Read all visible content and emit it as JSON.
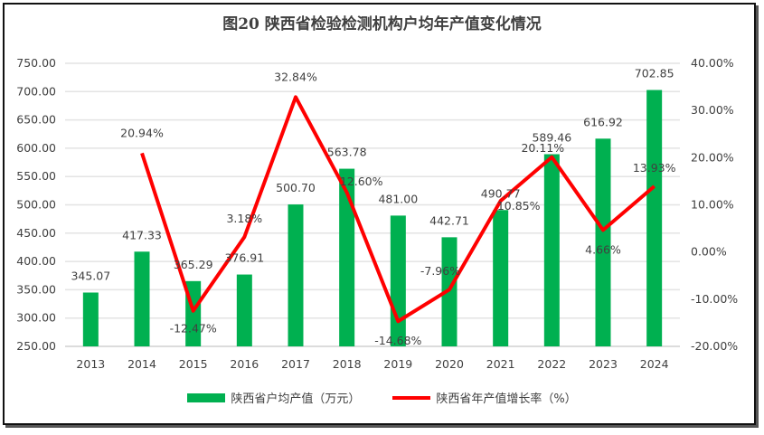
{
  "chart_data": {
    "type": "bar+line",
    "title": "图20  陕西省检验检测机构户均年产值变化情况",
    "categories": [
      "2013",
      "2014",
      "2015",
      "2016",
      "2017",
      "2018",
      "2019",
      "2020",
      "2021",
      "2022",
      "2023",
      "2024"
    ],
    "series": [
      {
        "name": "陕西省户均产值（万元）",
        "type": "bar",
        "axis": "left",
        "color": "#00b050",
        "values": [
          345.07,
          417.33,
          365.29,
          376.91,
          500.7,
          563.78,
          481.0,
          442.71,
          490.77,
          589.46,
          616.92,
          702.85
        ],
        "labels": [
          "345.07",
          "417.33",
          "365.29",
          "376.91",
          "500.70",
          "563.78",
          "481.00",
          "442.71",
          "490.77",
          "589.46",
          "616.92",
          "702.85"
        ]
      },
      {
        "name": "陕西省年产值增长率（%）",
        "type": "line",
        "axis": "right",
        "color": "#ff0000",
        "values": [
          null,
          20.94,
          -12.47,
          3.18,
          32.84,
          12.6,
          -14.68,
          -7.96,
          10.85,
          20.11,
          4.66,
          13.93
        ],
        "labels": [
          "",
          "20.94%",
          "-12.47%",
          "3.18%",
          "32.84%",
          "12.60%",
          "-14.68%",
          "-7.96%",
          "10.85%",
          "20.11%",
          "4.66%",
          "13.93%"
        ]
      }
    ],
    "y_left": {
      "range": [
        250,
        750
      ],
      "ticks": [
        "250.00",
        "300.00",
        "350.00",
        "400.00",
        "450.00",
        "500.00",
        "550.00",
        "600.00",
        "650.00",
        "700.00",
        "750.00"
      ]
    },
    "y_right": {
      "range": [
        -20,
        40
      ],
      "ticks": [
        "-20.00%",
        "-10.00%",
        "0.00%",
        "10.00%",
        "20.00%",
        "30.00%",
        "40.00%"
      ]
    },
    "grid": true,
    "legend": "bottom"
  }
}
